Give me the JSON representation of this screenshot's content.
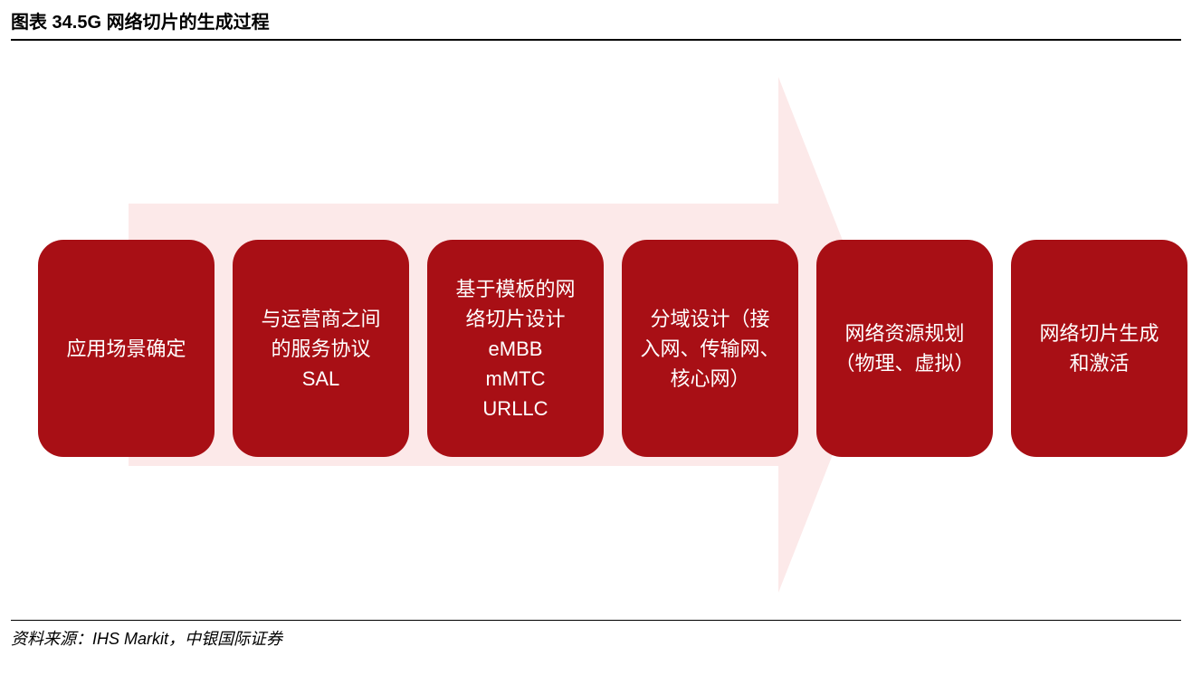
{
  "title": "图表 34.5G 网络切片的生成过程",
  "source": "资料来源：IHS Markit，中银国际证券",
  "diagram": {
    "type": "flowchart",
    "arrow_bg_color": "#fce9e9",
    "box_color": "#a80f15",
    "text_color": "#ffffff",
    "box_border_radius": 28,
    "box_fontsize": 22,
    "steps": [
      {
        "lines": [
          "应用场景确定"
        ]
      },
      {
        "lines": [
          "与运营商之间",
          "的服务协议",
          "SAL"
        ]
      },
      {
        "lines": [
          "基于模板的网",
          "络切片设计",
          "eMBB",
          "mMTC",
          "URLLC"
        ]
      },
      {
        "lines": [
          "分域设计（接",
          "入网、传输网、",
          "核心网）"
        ]
      },
      {
        "lines": [
          "网络资源规划",
          "（物理、虚拟）"
        ]
      },
      {
        "lines": [
          "网络切片生成",
          "和激活"
        ]
      }
    ]
  }
}
